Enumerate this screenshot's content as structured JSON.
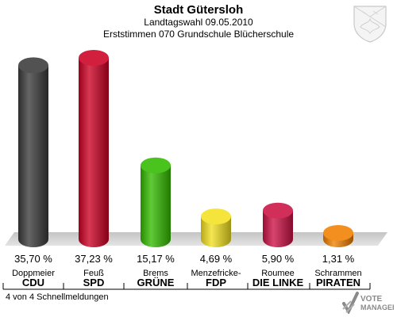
{
  "header": {
    "title": "Stadt Gütersloh",
    "subtitle": "Landtagswahl 09.05.2010",
    "subtitle2": "Erststimmen 070 Grundschule Blücherschule"
  },
  "footer": {
    "status": "4 von 4 Schnellmeldungen"
  },
  "logo": {
    "line1": "VOTE",
    "line2": "MANAGER"
  },
  "chart_data": {
    "type": "bar",
    "categories": [
      "CDU",
      "SPD",
      "GRÜNE",
      "FDP",
      "DIE LINKE",
      "PIRATEN"
    ],
    "candidates": [
      "Doppmeier",
      "Feuß",
      "Brems",
      "Menzefricke-",
      "Roumee",
      "Schrammen"
    ],
    "values": [
      35.7,
      37.23,
      15.17,
      4.69,
      5.9,
      1.31
    ],
    "value_labels": [
      "35,70 %",
      "37,23 %",
      "15,17 %",
      "4,69 %",
      "5,90 %",
      "1,31 %"
    ],
    "colors": [
      "#3a3a3a",
      "#cc0022",
      "#33bb00",
      "#f2e020",
      "#cc1144",
      "#f08000"
    ],
    "ylim": [
      0,
      40
    ],
    "grid": false,
    "legend": "none"
  }
}
